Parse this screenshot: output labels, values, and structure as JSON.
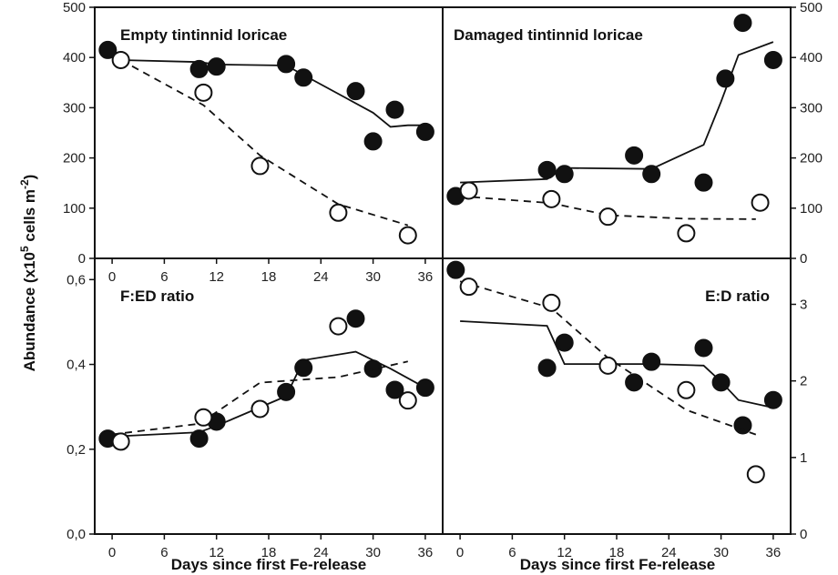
{
  "figure": {
    "xlabel": "Days since first Fe-release",
    "ylabel_main": "Abundance (x10",
    "ylabel_sup1": "5",
    "ylabel_mid": " cells m",
    "ylabel_sup2": "-2",
    "ylabel_end": ")"
  },
  "chart_data": [
    {
      "type": "scatter",
      "title": "Empty tintinnid loricae",
      "xlim": [
        -2,
        38
      ],
      "ylim": [
        0,
        500
      ],
      "xticks": [
        "0",
        "6",
        "12",
        "18",
        "24",
        "30",
        "36"
      ],
      "yticks": [
        "0",
        "100",
        "200",
        "300",
        "400",
        "500"
      ],
      "yaxis_side": "left",
      "series": [
        {
          "style": "filled",
          "points": [
            [
              -0.5,
              415
            ],
            [
              10,
              377
            ],
            [
              12,
              382
            ],
            [
              20,
              387
            ],
            [
              22,
              360
            ],
            [
              28,
              333
            ],
            [
              30,
              233
            ],
            [
              32.5,
              296
            ],
            [
              36,
              252
            ]
          ],
          "trend": [
            [
              1,
              395
            ],
            [
              10,
              391
            ],
            [
              12,
              386
            ],
            [
              20,
              384
            ],
            [
              30,
              290
            ],
            [
              32,
              262
            ],
            [
              34,
              265
            ],
            [
              36,
              265
            ]
          ]
        },
        {
          "style": "open",
          "points": [
            [
              1,
              395
            ],
            [
              10.5,
              330
            ],
            [
              17,
              184
            ],
            [
              26,
              91
            ],
            [
              34,
              46
            ]
          ],
          "trend": [
            [
              1,
              395
            ],
            [
              10.5,
              305
            ],
            [
              17,
              205
            ],
            [
              26,
              108
            ],
            [
              34,
              66
            ]
          ]
        }
      ]
    },
    {
      "type": "scatter",
      "title": "Damaged tintinnid loricae",
      "xlim": [
        -2,
        38
      ],
      "ylim": [
        0,
        500
      ],
      "xticks": [],
      "yticks": [
        "0",
        "100",
        "200",
        "300",
        "400",
        "500"
      ],
      "yaxis_side": "right",
      "series": [
        {
          "style": "filled",
          "points": [
            [
              -0.5,
              124
            ],
            [
              10,
              176
            ],
            [
              12,
              168
            ],
            [
              20,
              205
            ],
            [
              22,
              168
            ],
            [
              28,
              151
            ],
            [
              30.5,
              358
            ],
            [
              32.5,
              469
            ],
            [
              36,
              395
            ]
          ],
          "trend": [
            [
              0,
              151
            ],
            [
              10,
              158
            ],
            [
              12,
              180
            ],
            [
              22,
              178
            ],
            [
              28,
              226
            ],
            [
              30,
              312
            ],
            [
              32,
              405
            ],
            [
              36,
              431
            ]
          ]
        },
        {
          "style": "open",
          "points": [
            [
              1,
              135
            ],
            [
              10.5,
              118
            ],
            [
              17,
              83
            ],
            [
              26,
              50
            ],
            [
              34.5,
              111
            ]
          ],
          "trend": [
            [
              0,
              124
            ],
            [
              10.5,
              110
            ],
            [
              17,
              86
            ],
            [
              26,
              79
            ],
            [
              34,
              78
            ]
          ]
        }
      ]
    },
    {
      "type": "scatter",
      "title": "F:ED ratio",
      "xlim": [
        -2,
        38
      ],
      "ylim": [
        0,
        0.65
      ],
      "xticks": [
        "0",
        "6",
        "12",
        "18",
        "24",
        "30",
        "36"
      ],
      "yticks": [
        "0,0",
        "0,2",
        "0,4",
        "0,6"
      ],
      "yaxis_side": "left",
      "series": [
        {
          "style": "filled",
          "points": [
            [
              -0.5,
              0.225
            ],
            [
              10,
              0.225
            ],
            [
              12,
              0.265
            ],
            [
              20,
              0.335
            ],
            [
              22,
              0.392
            ],
            [
              28,
              0.508
            ],
            [
              30,
              0.39
            ],
            [
              32.5,
              0.34
            ],
            [
              36,
              0.345
            ]
          ],
          "trend": [
            [
              0,
              0.23
            ],
            [
              10,
              0.24
            ],
            [
              12,
              0.255
            ],
            [
              20,
              0.325
            ],
            [
              22,
              0.41
            ],
            [
              28,
              0.43
            ],
            [
              32,
              0.39
            ],
            [
              36,
              0.345
            ]
          ]
        },
        {
          "style": "open",
          "points": [
            [
              1,
              0.218
            ],
            [
              10.5,
              0.275
            ],
            [
              17,
              0.295
            ],
            [
              26,
              0.49
            ],
            [
              34,
              0.315
            ]
          ],
          "trend": [
            [
              0,
              0.235
            ],
            [
              10,
              0.26
            ],
            [
              17,
              0.357
            ],
            [
              26,
              0.37
            ],
            [
              34,
              0.407
            ]
          ]
        }
      ]
    },
    {
      "type": "scatter",
      "title": "E:D ratio",
      "xlim": [
        -2,
        38
      ],
      "ylim": [
        0,
        3.6
      ],
      "xticks": [
        "0",
        "6",
        "12",
        "18",
        "24",
        "30",
        "36"
      ],
      "yticks": [
        "0",
        "1",
        "2",
        "3"
      ],
      "yaxis_side": "right",
      "series": [
        {
          "style": "filled",
          "points": [
            [
              -0.5,
              3.45
            ],
            [
              10,
              2.17
            ],
            [
              12,
              2.5
            ],
            [
              20,
              1.98
            ],
            [
              22,
              2.25
            ],
            [
              28,
              2.43
            ],
            [
              30,
              1.98
            ],
            [
              32.5,
              1.42
            ],
            [
              36,
              1.75
            ]
          ],
          "trend": [
            [
              0,
              2.78
            ],
            [
              10,
              2.72
            ],
            [
              12,
              2.22
            ],
            [
              22,
              2.22
            ],
            [
              28,
              2.2
            ],
            [
              30,
              1.99
            ],
            [
              32,
              1.75
            ],
            [
              36,
              1.65
            ]
          ]
        },
        {
          "style": "open",
          "points": [
            [
              1,
              3.23
            ],
            [
              10.5,
              3.02
            ],
            [
              17,
              2.2
            ],
            [
              26,
              1.88
            ],
            [
              34,
              0.78
            ]
          ],
          "trend": [
            [
              0,
              3.3
            ],
            [
              10.5,
              2.95
            ],
            [
              17,
              2.3
            ],
            [
              26,
              1.62
            ],
            [
              34,
              1.3
            ]
          ]
        }
      ]
    }
  ]
}
